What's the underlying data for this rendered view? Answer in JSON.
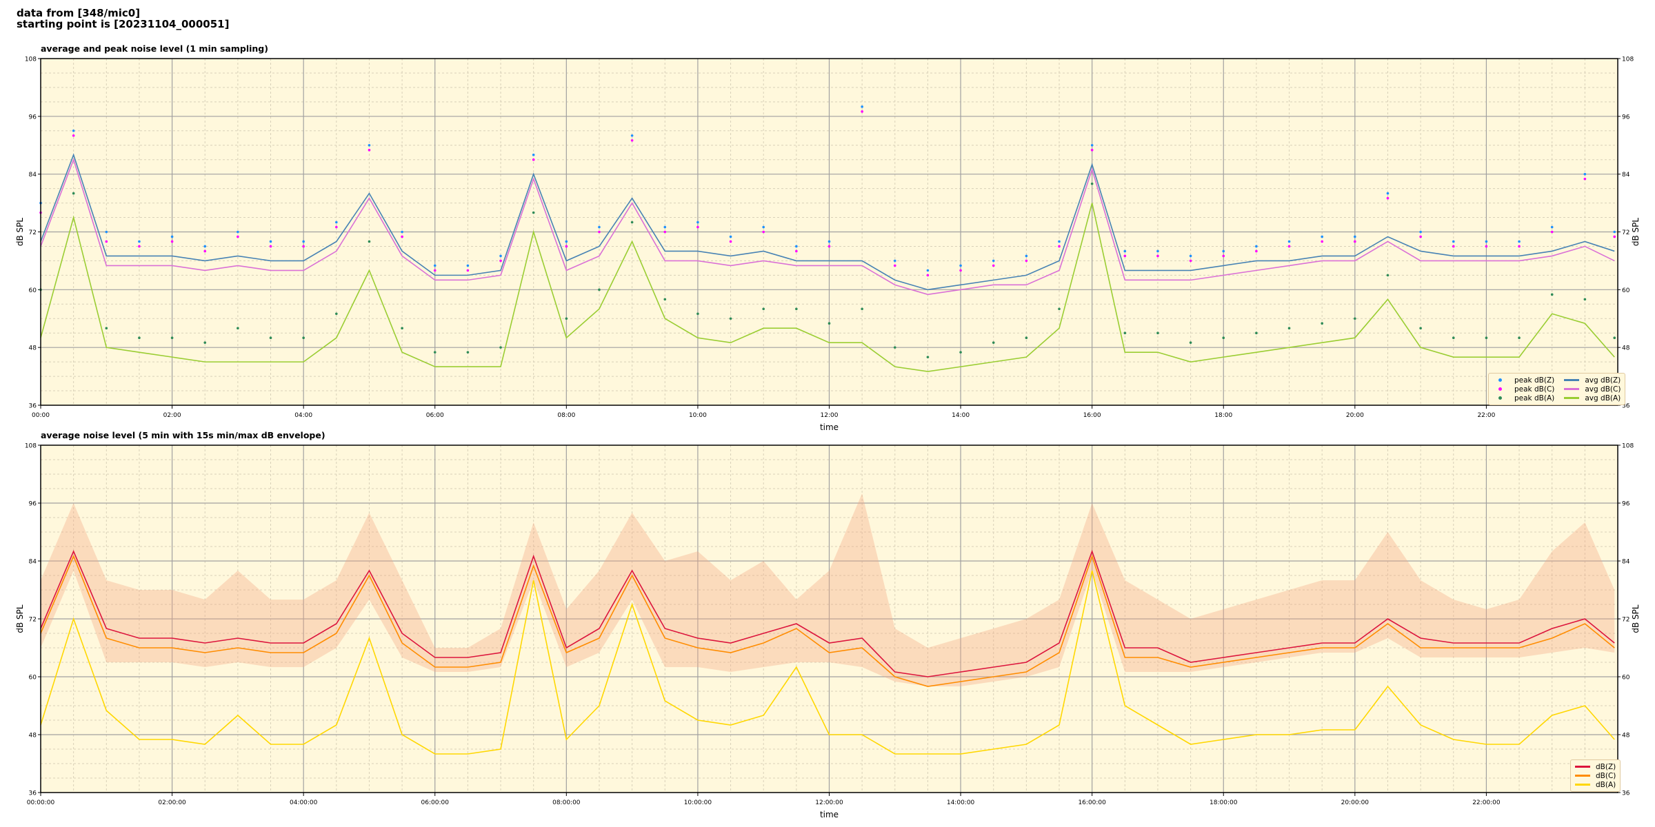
{
  "header": {
    "line1": "data from [348/mic0]",
    "line2": "starting point is [20231104_000051]"
  },
  "chart_data": [
    {
      "type": "line",
      "title": "average and peak noise level (1 min sampling)",
      "xlabel": "time",
      "ylabel": "dB SPL",
      "ylim": [
        36,
        108
      ],
      "yticks": [
        36,
        48,
        60,
        72,
        84,
        96,
        108
      ],
      "xlim_hours": [
        0,
        24
      ],
      "xtick_labels": [
        "00:00",
        "02:00",
        "04:00",
        "06:00",
        "08:00",
        "10:00",
        "12:00",
        "14:00",
        "16:00",
        "18:00",
        "20:00",
        "22:00"
      ],
      "grid": true,
      "background": "#fff8dc",
      "legend_placement": "lower-right",
      "x_hours": [
        0,
        0.5,
        1,
        1.5,
        2,
        2.5,
        3,
        3.5,
        4,
        4.5,
        5,
        5.5,
        6,
        6.5,
        7,
        7.5,
        8,
        8.5,
        9,
        9.5,
        10,
        10.5,
        11,
        11.5,
        12,
        12.5,
        13,
        13.5,
        14,
        14.5,
        15,
        15.5,
        16,
        16.5,
        17,
        17.5,
        18,
        18.5,
        19,
        19.5,
        20,
        20.5,
        21,
        21.5,
        22,
        22.5,
        23,
        23.5,
        23.95
      ],
      "series": [
        {
          "name": "peak dB(Z)",
          "kind": "scatter",
          "color": "#1e90ff",
          "values": [
            78,
            93,
            72,
            70,
            71,
            69,
            72,
            70,
            70,
            74,
            90,
            72,
            65,
            65,
            67,
            88,
            70,
            73,
            92,
            73,
            74,
            71,
            73,
            69,
            70,
            98,
            66,
            64,
            65,
            66,
            67,
            70,
            90,
            68,
            68,
            67,
            68,
            69,
            70,
            71,
            71,
            80,
            72,
            70,
            70,
            70,
            73,
            84,
            72
          ]
        },
        {
          "name": "peak dB(C)",
          "kind": "scatter",
          "color": "#ff00ff",
          "values": [
            76,
            92,
            70,
            69,
            70,
            68,
            71,
            69,
            69,
            73,
            89,
            71,
            64,
            64,
            66,
            87,
            69,
            72,
            91,
            72,
            73,
            70,
            72,
            68,
            69,
            97,
            65,
            63,
            64,
            65,
            66,
            69,
            89,
            67,
            67,
            66,
            67,
            68,
            69,
            70,
            70,
            79,
            71,
            69,
            69,
            69,
            72,
            83,
            71
          ]
        },
        {
          "name": "peak dB(A)",
          "kind": "scatter",
          "color": "#2e8b57",
          "values": [
            60,
            80,
            52,
            50,
            50,
            49,
            52,
            50,
            50,
            55,
            70,
            52,
            47,
            47,
            48,
            76,
            54,
            60,
            74,
            58,
            55,
            54,
            56,
            56,
            53,
            56,
            48,
            46,
            47,
            49,
            50,
            56,
            82,
            51,
            51,
            49,
            50,
            51,
            52,
            53,
            54,
            63,
            52,
            50,
            50,
            50,
            59,
            58,
            50
          ]
        },
        {
          "name": "avg dB(Z)",
          "kind": "line",
          "color": "#4682b4",
          "values": [
            70,
            88,
            67,
            67,
            67,
            66,
            67,
            66,
            66,
            70,
            80,
            68,
            63,
            63,
            64,
            84,
            66,
            69,
            79,
            68,
            68,
            67,
            68,
            66,
            66,
            66,
            62,
            60,
            61,
            62,
            63,
            66,
            86,
            64,
            64,
            64,
            65,
            66,
            66,
            67,
            67,
            71,
            68,
            67,
            67,
            67,
            68,
            70,
            68
          ]
        },
        {
          "name": "avg dB(C)",
          "kind": "line",
          "color": "#da70d6",
          "values": [
            69,
            87,
            65,
            65,
            65,
            64,
            65,
            64,
            64,
            68,
            79,
            67,
            62,
            62,
            63,
            83,
            64,
            67,
            78,
            66,
            66,
            65,
            66,
            65,
            65,
            65,
            61,
            59,
            60,
            61,
            61,
            64,
            85,
            62,
            62,
            62,
            63,
            64,
            65,
            66,
            66,
            70,
            66,
            66,
            66,
            66,
            67,
            69,
            66
          ]
        },
        {
          "name": "avg dB(A)",
          "kind": "line",
          "color": "#9acd32",
          "values": [
            50,
            75,
            48,
            47,
            46,
            45,
            45,
            45,
            45,
            50,
            64,
            47,
            44,
            44,
            44,
            72,
            50,
            56,
            70,
            54,
            50,
            49,
            52,
            52,
            49,
            49,
            44,
            43,
            44,
            45,
            46,
            52,
            78,
            47,
            47,
            45,
            46,
            47,
            48,
            49,
            50,
            58,
            48,
            46,
            46,
            46,
            55,
            53,
            46
          ]
        }
      ]
    },
    {
      "type": "line",
      "title": "average noise level (5 min with 15s min/max dB envelope)",
      "xlabel": "time",
      "ylabel": "dB SPL",
      "ylim": [
        36,
        108
      ],
      "yticks": [
        36,
        48,
        60,
        72,
        84,
        96,
        108
      ],
      "xlim_hours": [
        0,
        24
      ],
      "xtick_labels": [
        "00:00:00",
        "02:00:00",
        "04:00:00",
        "06:00:00",
        "08:00:00",
        "10:00:00",
        "12:00:00",
        "14:00:00",
        "16:00:00",
        "18:00:00",
        "20:00:00",
        "22:00:00"
      ],
      "grid": true,
      "background": "#fff8dc",
      "legend_placement": "lower-right",
      "x_hours": [
        0,
        0.5,
        1,
        1.5,
        2,
        2.5,
        3,
        3.5,
        4,
        4.5,
        5,
        5.5,
        6,
        6.5,
        7,
        7.5,
        8,
        8.5,
        9,
        9.5,
        10,
        10.5,
        11,
        11.5,
        12,
        12.5,
        13,
        13.5,
        14,
        14.5,
        15,
        15.5,
        16,
        16.5,
        17,
        17.5,
        18,
        18.5,
        19,
        19.5,
        20,
        20.5,
        21,
        21.5,
        22,
        22.5,
        23,
        23.5,
        23.95
      ],
      "envelope": {
        "color": "#f4a582",
        "max": [
          80,
          96,
          80,
          78,
          78,
          76,
          82,
          76,
          76,
          80,
          94,
          80,
          66,
          66,
          70,
          92,
          74,
          82,
          94,
          84,
          86,
          80,
          84,
          76,
          82,
          98,
          70,
          66,
          68,
          70,
          72,
          76,
          96,
          80,
          76,
          72,
          74,
          76,
          78,
          80,
          80,
          90,
          80,
          76,
          74,
          76,
          86,
          92,
          78
        ],
        "min": [
          66,
          82,
          63,
          63,
          63,
          62,
          63,
          62,
          62,
          66,
          76,
          64,
          61,
          61,
          62,
          80,
          62,
          65,
          76,
          62,
          62,
          61,
          62,
          63,
          63,
          62,
          59,
          58,
          58,
          59,
          60,
          62,
          82,
          61,
          61,
          61,
          62,
          63,
          64,
          65,
          65,
          68,
          64,
          64,
          64,
          64,
          65,
          66,
          65
        ]
      },
      "series": [
        {
          "name": "dB(Z)",
          "kind": "line",
          "color": "#dc143c",
          "values": [
            70,
            86,
            70,
            68,
            68,
            67,
            68,
            67,
            67,
            71,
            82,
            69,
            64,
            64,
            65,
            85,
            66,
            70,
            82,
            70,
            68,
            67,
            69,
            71,
            67,
            68,
            61,
            60,
            61,
            62,
            63,
            67,
            86,
            66,
            66,
            63,
            64,
            65,
            66,
            67,
            67,
            72,
            68,
            67,
            67,
            67,
            70,
            72,
            67
          ]
        },
        {
          "name": "dB(C)",
          "kind": "line",
          "color": "#ff8c00",
          "values": [
            69,
            85,
            68,
            66,
            66,
            65,
            66,
            65,
            65,
            69,
            81,
            67,
            62,
            62,
            63,
            83,
            65,
            68,
            81,
            68,
            66,
            65,
            67,
            70,
            65,
            66,
            60,
            58,
            59,
            60,
            61,
            65,
            85,
            64,
            64,
            62,
            63,
            64,
            65,
            66,
            66,
            71,
            66,
            66,
            66,
            66,
            68,
            71,
            66
          ]
        },
        {
          "name": "dB(A)",
          "kind": "line",
          "color": "#ffd700",
          "values": [
            50,
            72,
            53,
            47,
            47,
            46,
            52,
            46,
            46,
            50,
            68,
            48,
            44,
            44,
            45,
            80,
            47,
            54,
            75,
            55,
            51,
            50,
            52,
            62,
            48,
            48,
            44,
            44,
            44,
            45,
            46,
            50,
            82,
            54,
            50,
            46,
            47,
            48,
            48,
            49,
            49,
            58,
            50,
            47,
            46,
            46,
            52,
            54,
            47
          ]
        }
      ]
    }
  ]
}
